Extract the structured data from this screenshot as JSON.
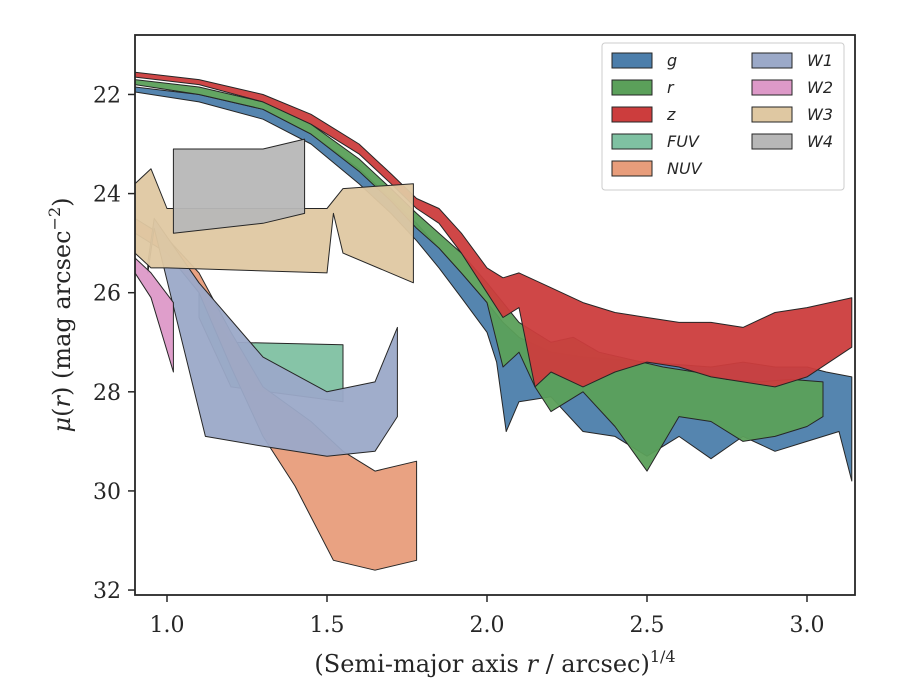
{
  "chart_data": {
    "type": "area",
    "xlabel": "(Semi-major axis r / arcsec)",
    "xlabel_parts": {
      "pre": "(Semi-major axis ",
      "var": "r",
      "post": " / arcsec)",
      "sup": "1/4"
    },
    "ylabel": "μ(r) (mag arcsec−2)",
    "ylabel_parts": {
      "mu": "μ",
      "open": "(",
      "var": "r",
      "close": ") (mag arcsec",
      "sup": "−2",
      "end": ")"
    },
    "xlim": [
      0.9,
      3.15
    ],
    "ylim": [
      32.1,
      20.8
    ],
    "y_inverted": true,
    "grid": false,
    "legend_position": "top-right",
    "legend_columns": 2,
    "xticks": [
      1.0,
      1.5,
      2.0,
      2.5,
      3.0
    ],
    "xtick_labels": [
      "1.0",
      "1.5",
      "2.0",
      "2.5",
      "3.0"
    ],
    "yticks": [
      22,
      24,
      26,
      28,
      30,
      32
    ],
    "ytick_labels": [
      "22",
      "24",
      "26",
      "28",
      "30",
      "32"
    ],
    "series": [
      {
        "name": "g",
        "color": "#4c7eab",
        "upper": [
          [
            0.9,
            21.85
          ],
          [
            1.1,
            22.0
          ],
          [
            1.3,
            22.3
          ],
          [
            1.45,
            22.8
          ],
          [
            1.6,
            23.5
          ],
          [
            1.7,
            24.1
          ],
          [
            1.78,
            24.6
          ],
          [
            1.85,
            25.1
          ],
          [
            1.92,
            25.6
          ],
          [
            2.0,
            26.2
          ],
          [
            2.05,
            26.6
          ],
          [
            2.1,
            26.9
          ],
          [
            2.2,
            27.2
          ],
          [
            2.3,
            27.3
          ],
          [
            2.4,
            27.35
          ],
          [
            2.5,
            27.4
          ],
          [
            2.6,
            27.45
          ],
          [
            2.7,
            27.5
          ],
          [
            2.8,
            27.4
          ],
          [
            2.9,
            27.5
          ],
          [
            3.0,
            27.5
          ],
          [
            3.06,
            27.6
          ],
          [
            3.14,
            27.7
          ]
        ],
        "lower": [
          [
            0.9,
            21.95
          ],
          [
            1.1,
            22.15
          ],
          [
            1.3,
            22.5
          ],
          [
            1.45,
            23.0
          ],
          [
            1.6,
            23.8
          ],
          [
            1.7,
            24.4
          ],
          [
            1.78,
            24.95
          ],
          [
            1.85,
            25.5
          ],
          [
            1.92,
            26.1
          ],
          [
            2.0,
            26.8
          ],
          [
            2.03,
            27.4
          ],
          [
            2.06,
            28.8
          ],
          [
            2.1,
            28.2
          ],
          [
            2.2,
            28.1
          ],
          [
            2.3,
            28.8
          ],
          [
            2.4,
            28.9
          ],
          [
            2.5,
            29.3
          ],
          [
            2.6,
            28.9
          ],
          [
            2.7,
            29.35
          ],
          [
            2.8,
            28.9
          ],
          [
            2.9,
            29.2
          ],
          [
            3.0,
            29.0
          ],
          [
            3.1,
            28.8
          ],
          [
            3.14,
            29.8
          ]
        ]
      },
      {
        "name": "r",
        "color": "#5ba05a",
        "upper": [
          [
            0.9,
            21.7
          ],
          [
            1.1,
            21.85
          ],
          [
            1.3,
            22.15
          ],
          [
            1.45,
            22.6
          ],
          [
            1.6,
            23.3
          ],
          [
            1.7,
            23.9
          ],
          [
            1.78,
            24.4
          ],
          [
            1.85,
            24.8
          ],
          [
            1.92,
            25.2
          ],
          [
            2.0,
            25.8
          ],
          [
            2.05,
            26.2
          ],
          [
            2.1,
            26.6
          ],
          [
            2.2,
            27.0
          ],
          [
            2.27,
            26.9
          ],
          [
            2.35,
            27.2
          ],
          [
            2.45,
            27.35
          ],
          [
            2.55,
            27.5
          ],
          [
            2.65,
            27.6
          ],
          [
            2.75,
            27.75
          ],
          [
            2.85,
            27.8
          ],
          [
            2.95,
            27.75
          ],
          [
            3.05,
            27.8
          ]
        ],
        "lower": [
          [
            0.9,
            21.8
          ],
          [
            1.1,
            22.0
          ],
          [
            1.3,
            22.3
          ],
          [
            1.45,
            22.8
          ],
          [
            1.6,
            23.55
          ],
          [
            1.7,
            24.15
          ],
          [
            1.78,
            24.7
          ],
          [
            1.85,
            25.1
          ],
          [
            1.92,
            25.6
          ],
          [
            2.0,
            26.2
          ],
          [
            2.05,
            27.5
          ],
          [
            2.1,
            27.2
          ],
          [
            2.15,
            27.9
          ],
          [
            2.2,
            28.4
          ],
          [
            2.3,
            28.0
          ],
          [
            2.4,
            28.7
          ],
          [
            2.5,
            29.6
          ],
          [
            2.6,
            28.5
          ],
          [
            2.7,
            28.6
          ],
          [
            2.8,
            29.0
          ],
          [
            2.9,
            28.9
          ],
          [
            3.0,
            28.7
          ],
          [
            3.05,
            28.5
          ]
        ]
      },
      {
        "name": "z",
        "color": "#cc3d3d",
        "upper": [
          [
            0.9,
            21.55
          ],
          [
            1.1,
            21.7
          ],
          [
            1.3,
            22.0
          ],
          [
            1.45,
            22.4
          ],
          [
            1.6,
            23.0
          ],
          [
            1.7,
            23.6
          ],
          [
            1.78,
            24.1
          ],
          [
            1.85,
            24.3
          ],
          [
            1.92,
            24.8
          ],
          [
            2.0,
            25.5
          ],
          [
            2.05,
            25.7
          ],
          [
            2.1,
            25.6
          ],
          [
            2.2,
            25.9
          ],
          [
            2.3,
            26.2
          ],
          [
            2.4,
            26.4
          ],
          [
            2.5,
            26.5
          ],
          [
            2.6,
            26.6
          ],
          [
            2.7,
            26.6
          ],
          [
            2.8,
            26.7
          ],
          [
            2.9,
            26.4
          ],
          [
            3.0,
            26.3
          ],
          [
            3.14,
            26.1
          ]
        ],
        "lower": [
          [
            0.9,
            21.65
          ],
          [
            1.1,
            21.8
          ],
          [
            1.3,
            22.15
          ],
          [
            1.45,
            22.6
          ],
          [
            1.6,
            23.2
          ],
          [
            1.7,
            23.8
          ],
          [
            1.78,
            24.3
          ],
          [
            1.85,
            24.6
          ],
          [
            1.92,
            25.2
          ],
          [
            2.0,
            26.0
          ],
          [
            2.05,
            26.5
          ],
          [
            2.1,
            26.3
          ],
          [
            2.15,
            27.9
          ],
          [
            2.2,
            27.6
          ],
          [
            2.3,
            27.9
          ],
          [
            2.4,
            27.6
          ],
          [
            2.5,
            27.4
          ],
          [
            2.6,
            27.5
          ],
          [
            2.7,
            27.7
          ],
          [
            2.8,
            27.8
          ],
          [
            2.9,
            27.9
          ],
          [
            3.0,
            27.7
          ],
          [
            3.14,
            27.1
          ]
        ]
      },
      {
        "name": "FUV",
        "color": "#7fc1a2",
        "upper": [
          [
            1.1,
            26.0
          ],
          [
            1.2,
            27.0
          ],
          [
            1.55,
            27.05
          ]
        ],
        "lower": [
          [
            1.1,
            26.5
          ],
          [
            1.2,
            27.9
          ],
          [
            1.55,
            28.2
          ]
        ]
      },
      {
        "name": "NUV",
        "color": "#e89d7b",
        "upper": [
          [
            0.9,
            24.5
          ],
          [
            1.0,
            24.9
          ],
          [
            1.1,
            25.6
          ],
          [
            1.2,
            26.8
          ],
          [
            1.3,
            27.9
          ],
          [
            1.45,
            28.6
          ],
          [
            1.55,
            29.2
          ],
          [
            1.65,
            29.6
          ],
          [
            1.78,
            29.4
          ]
        ],
        "lower": [
          [
            0.9,
            24.8
          ],
          [
            1.0,
            25.2
          ],
          [
            1.1,
            26.0
          ],
          [
            1.2,
            27.5
          ],
          [
            1.3,
            28.9
          ],
          [
            1.4,
            29.9
          ],
          [
            1.52,
            31.4
          ],
          [
            1.65,
            31.6
          ],
          [
            1.78,
            31.4
          ]
        ]
      },
      {
        "name": "W1",
        "color": "#9ba9c8",
        "upper": [
          [
            0.94,
            25.4
          ],
          [
            0.96,
            24.5
          ],
          [
            1.1,
            25.8
          ],
          [
            1.3,
            27.3
          ],
          [
            1.5,
            28.0
          ],
          [
            1.65,
            27.8
          ],
          [
            1.72,
            26.7
          ]
        ],
        "lower": [
          [
            0.94,
            25.6
          ],
          [
            0.96,
            24.7
          ],
          [
            1.12,
            28.9
          ],
          [
            1.3,
            29.1
          ],
          [
            1.5,
            29.3
          ],
          [
            1.65,
            29.2
          ],
          [
            1.72,
            28.5
          ]
        ]
      },
      {
        "name": "W2",
        "color": "#dd99c8",
        "upper": [
          [
            0.9,
            25.3
          ],
          [
            0.95,
            25.6
          ],
          [
            1.02,
            26.2
          ]
        ],
        "lower": [
          [
            0.9,
            25.6
          ],
          [
            0.95,
            26.1
          ],
          [
            1.02,
            27.6
          ]
        ]
      },
      {
        "name": "W3",
        "color": "#dfc8a2",
        "upper": [
          [
            0.9,
            23.8
          ],
          [
            0.95,
            23.5
          ],
          [
            1.0,
            24.3
          ],
          [
            1.5,
            24.3
          ],
          [
            1.55,
            23.9
          ],
          [
            1.77,
            23.8
          ]
        ],
        "lower": [
          [
            0.9,
            25.2
          ],
          [
            0.95,
            25.5
          ],
          [
            1.0,
            25.5
          ],
          [
            1.5,
            25.6
          ],
          [
            1.52,
            24.4
          ],
          [
            1.55,
            25.2
          ],
          [
            1.77,
            25.8
          ]
        ]
      },
      {
        "name": "W4",
        "color": "#b7b7b7",
        "upper": [
          [
            1.02,
            23.1
          ],
          [
            1.3,
            23.1
          ],
          [
            1.43,
            22.9
          ]
        ],
        "lower": [
          [
            1.02,
            24.8
          ],
          [
            1.3,
            24.6
          ],
          [
            1.43,
            24.4
          ]
        ]
      }
    ]
  }
}
